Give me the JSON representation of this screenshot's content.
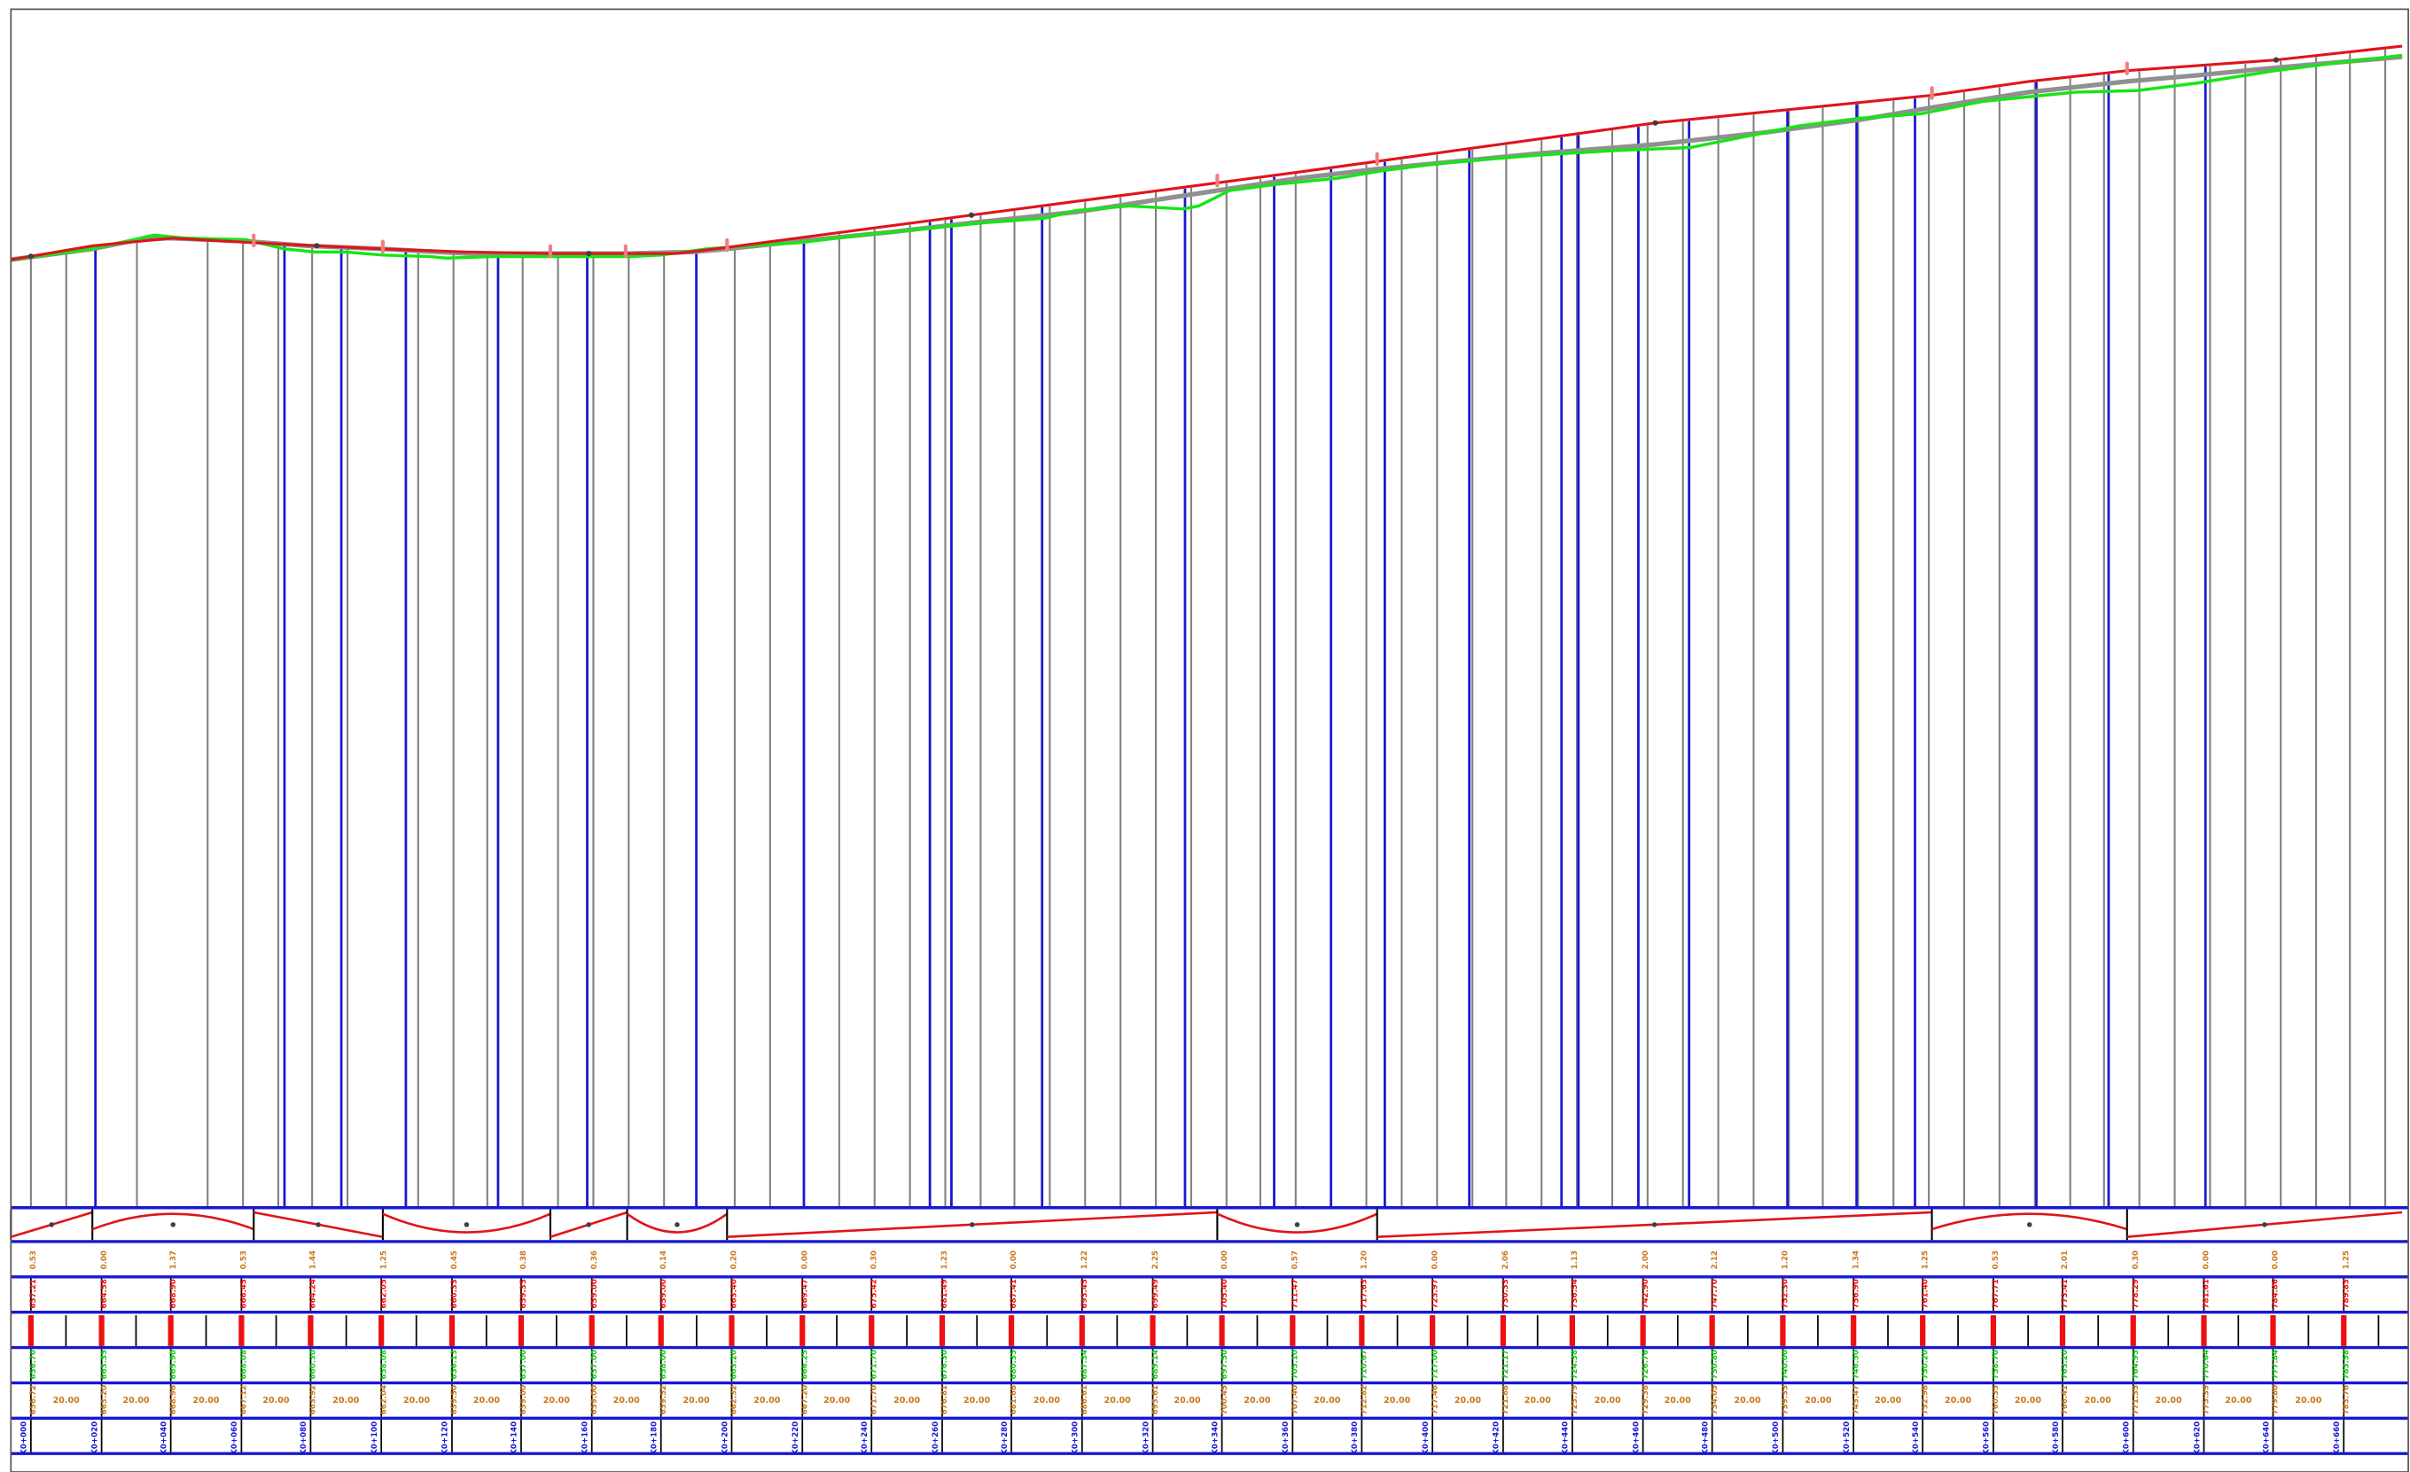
{
  "drawing": {
    "title": "",
    "colors": {
      "frame": "#555555",
      "design_line": "#e0141c",
      "ground_line": "#18e418",
      "grade_line": "#909090",
      "station_gray": "#808080",
      "station_blue": "#1818d0",
      "band_rule": "#1818d0",
      "band_label_orange": "#c8781a",
      "band_label_red": "#ee1010",
      "band_label_green": "#18c818",
      "band_label_blue": "#1818d0",
      "marker_pink": "#f08080",
      "vertex_dot": "#404040"
    },
    "lengths_text": "20.00",
    "band_orange_values": [
      "0.53",
      "0.00",
      "1.37",
      "0.53",
      "1.44",
      "1.25",
      "0.45",
      "0.38",
      "0.36",
      "0.14",
      "0.20",
      "0.00",
      "0.30",
      "1.23",
      "0.00",
      "1.22",
      "2.25",
      "0.00",
      "0.57",
      "1.20",
      "0.00",
      "2.06",
      "1.13",
      "2.00",
      "2.12",
      "1.20",
      "1.34",
      "1.25",
      "0.53",
      "2.01",
      "0.30",
      "0.00",
      "0.00",
      "1.25"
    ]
  },
  "chart_data": {
    "type": "line",
    "title": "",
    "xlabel": "",
    "ylabel": "",
    "xlim": [
      0,
      1560
    ],
    "ylim": [
      0,
      780
    ],
    "series": [
      {
        "kind": "design",
        "x": [
          7,
          60,
          112,
          165,
          249,
          303,
          358,
          383,
          408,
          440,
          473,
          632,
          792,
          845,
          896,
          1077,
          1257,
          1320,
          1384,
          1481,
          1563
        ],
        "y": [
          617,
          626,
          631,
          628,
          624,
          622,
          621,
          621,
          621,
          621,
          625,
          646,
          667,
          674,
          681,
          706,
          724,
          733,
          740,
          747,
          756
        ]
      },
      {
        "kind": "ground",
        "x": [
          7,
          30,
          60,
          100,
          120,
          160,
          185,
          205,
          225,
          249,
          280,
          290,
          320,
          360,
          410,
          430,
          460,
          500,
          520,
          560,
          600,
          640,
          680,
          700,
          735,
          770,
          780,
          800,
          830,
          870,
          900,
          940,
          1000,
          1050,
          1100,
          1140,
          1170,
          1210,
          1250,
          1290,
          1350,
          1390,
          1430,
          1480,
          1520,
          1563
        ],
        "y": [
          617,
          620,
          624,
          633,
          631,
          630,
          624,
          622,
          622,
          620,
          619,
          618,
          619,
          619,
          619,
          620,
          624,
          627,
          628,
          633,
          637,
          641,
          644,
          649,
          652,
          650,
          652,
          662,
          666,
          670,
          675,
          680,
          685,
          688,
          690,
          698,
          704,
          709,
          712,
          720,
          726,
          727,
          732,
          740,
          745,
          750
        ]
      },
      {
        "kind": "grade",
        "x": [
          7,
          60,
          90,
          110,
          160,
          200,
          249,
          303,
          358,
          408,
          450,
          473,
          520,
          580,
          632,
          700,
          792,
          845,
          896,
          1000,
          1077,
          1150,
          1210,
          1257,
          1320,
          1384,
          1430,
          1481,
          1563
        ],
        "y": [
          617,
          624,
          630,
          631,
          629,
          626,
          624,
          621,
          621,
          621,
          622,
          624,
          629,
          635,
          641,
          648,
          662,
          670,
          676,
          686,
          692,
          700,
          708,
          716,
          726,
          733,
          737,
          742,
          749
        ]
      }
    ],
    "stations_gray": [
      20,
      43,
      89,
      135,
      158,
      181,
      203,
      226,
      272,
      295,
      317,
      340,
      363,
      386,
      409,
      432,
      478,
      501,
      523,
      546,
      569,
      592,
      615,
      638,
      660,
      683,
      706,
      729,
      752,
      775,
      798,
      820,
      843,
      866,
      889,
      912,
      935,
      958,
      980,
      1003,
      1026,
      1049,
      1072,
      1095,
      1118,
      1141,
      1164,
      1186,
      1209,
      1232,
      1255,
      1278,
      1301,
      1324,
      1347,
      1369,
      1392,
      1415,
      1438,
      1461,
      1484,
      1507,
      1529,
      1552
    ],
    "stations_blue": [
      62,
      185,
      222,
      264,
      324,
      382,
      453,
      523,
      605,
      619,
      678,
      771,
      829,
      866,
      901,
      956,
      1016,
      1027,
      1066,
      1099,
      1163,
      1208,
      1246,
      1325,
      1372,
      1435
    ],
    "curve_segments": [
      {
        "from": 7,
        "to": 60,
        "shape": "rise"
      },
      {
        "from": 60,
        "to": 165,
        "shape": "crest"
      },
      {
        "from": 165,
        "to": 249,
        "shape": "fall"
      },
      {
        "from": 249,
        "to": 358,
        "shape": "sag"
      },
      {
        "from": 358,
        "to": 408,
        "shape": "rise"
      },
      {
        "from": 408,
        "to": 473,
        "shape": "sag"
      },
      {
        "from": 473,
        "to": 792,
        "shape": "rise"
      },
      {
        "from": 792,
        "to": 896,
        "shape": "sag"
      },
      {
        "from": 896,
        "to": 1257,
        "shape": "rise"
      },
      {
        "from": 1257,
        "to": 1384,
        "shape": "crest"
      },
      {
        "from": 1384,
        "to": 1563,
        "shape": "rise"
      }
    ],
    "design_vertices_x": [
      20,
      206,
      383,
      632,
      1077,
      1481
    ],
    "markers_pink_x": [
      165,
      249,
      358,
      407,
      473,
      792,
      896,
      1257,
      1384
    ]
  }
}
